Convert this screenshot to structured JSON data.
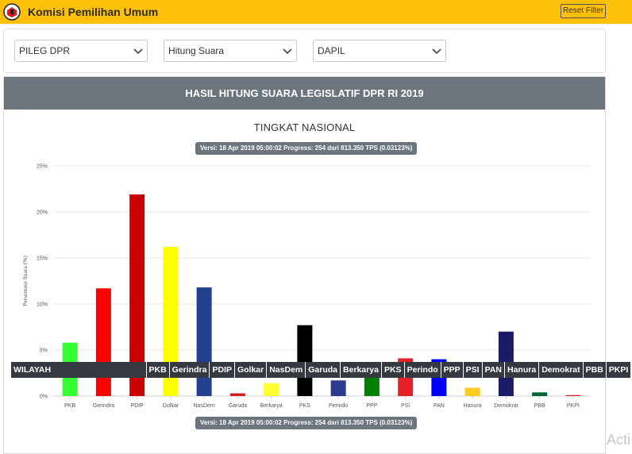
{
  "header": {
    "title": "Komisi Pemilihan Umum",
    "reset_label": "Reset Filter"
  },
  "filters": {
    "election": "PILEG DPR",
    "mode": "Hitung Suara",
    "area": "DAPIL"
  },
  "results": {
    "title": "HASIL HITUNG SUARA LEGISLATIF DPR RI 2019",
    "subtitle": "TINGKAT NASIONAL",
    "version_top": "Versi: 18 Apr 2019 05:00:02 Progress: 254 dari 813.350 TPS (0.03123%)",
    "version_bottom": "Versi: 18 Apr 2019 05:00:02 Progress: 254 dari 813.350 TPS (0.03123%)"
  },
  "chart_data": {
    "type": "bar",
    "ylabel": "Persentase Suara (%)",
    "ylim": [
      0,
      25
    ],
    "yticks": [
      0,
      5,
      10,
      15,
      20,
      25
    ],
    "ytick_labels": [
      "0%",
      "5%",
      "10%",
      "15%",
      "20%",
      "25%"
    ],
    "grid": true,
    "categories": [
      "PKB",
      "Gerindra",
      "PDIP",
      "Golkar",
      "NasDem",
      "Garuda",
      "Berkarya",
      "PKS",
      "Perindo",
      "PPP",
      "PSI",
      "PAN",
      "Hanura",
      "Demokrat",
      "PBB",
      "PKPI"
    ],
    "values": [
      5.8,
      11.7,
      21.9,
      16.2,
      11.8,
      0.3,
      1.4,
      7.7,
      1.7,
      3.2,
      4.1,
      4.0,
      0.9,
      7.0,
      0.4,
      0.1
    ],
    "colors": [
      "#33ff33",
      "#ff0000",
      "#cc0000",
      "#ffff00",
      "#23408e",
      "#cc2222",
      "#ffff33",
      "#000000",
      "#2a3b8f",
      "#008000",
      "#e8202a",
      "#0000ff",
      "#ffcc22",
      "#1a1a66",
      "#006633",
      "#dd2222"
    ]
  },
  "table": {
    "headers": [
      "WILAYAH",
      "PKB",
      "Gerindra",
      "PDIP",
      "Golkar",
      "NasDem",
      "Garuda",
      "Berkarya",
      "PKS",
      "Perindo",
      "PPP",
      "PSI",
      "PAN",
      "Hanura",
      "Demokrat",
      "PBB",
      "PKPI"
    ]
  },
  "watermark": "Acti",
  "icons": {
    "logo": "kpu-logo-icon",
    "select_arrow": "chevron-down-icon"
  }
}
